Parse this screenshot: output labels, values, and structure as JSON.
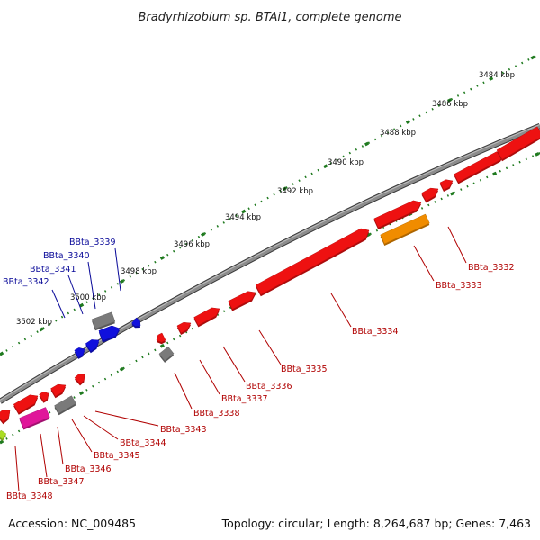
{
  "title": "Bradyrhizobium sp. BTAi1, complete genome",
  "footer": {
    "accession": "Accession: NC_009485",
    "summary": "Topology: circular; Length: 8,264,687 bp; Genes: 7,463"
  },
  "colors": {
    "backbone": "#7f7f7f",
    "ticks": "#1f7a1f",
    "gene_red": "#ee1111",
    "gene_blue": "#1010dd",
    "gene_gray": "#7a7a7a",
    "gene_orange": "#f08c00",
    "gene_pink": "#e0169a",
    "gene_yellowgreen": "#aadd22",
    "label_red": "#b00000",
    "label_blue": "#0a0a99"
  },
  "scale_labels": [
    "3484 kbp",
    "3486 kbp",
    "3488 kbp",
    "3490 kbp",
    "3492 kbp",
    "3494 kbp",
    "3496 kbp",
    "3498 kbp",
    "3500 kbp",
    "3502 kbp"
  ],
  "genes_forward": [
    "BBta_3339",
    "BBta_3340",
    "BBta_3341",
    "BBta_3342"
  ],
  "genes_reverse": [
    "BBta_3332",
    "BBta_3333",
    "BBta_3334",
    "BBta_3335",
    "BBta_3336",
    "BBta_3337",
    "BBta_3338",
    "BBta_3343",
    "BBta_3344",
    "BBta_3345",
    "BBta_3346",
    "BBta_3347",
    "BBta_3348"
  ]
}
